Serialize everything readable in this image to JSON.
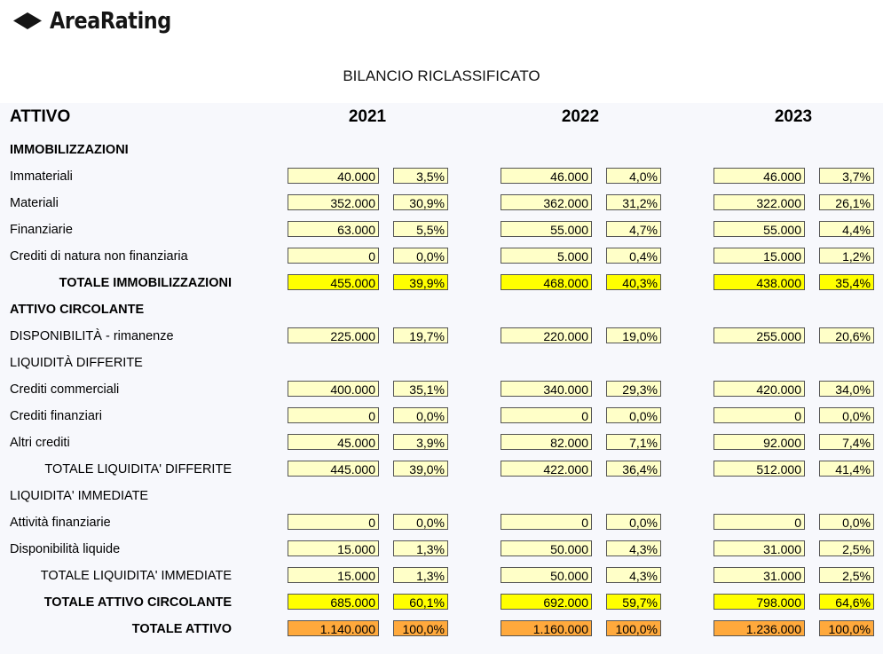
{
  "brand": {
    "name": "AreaRating"
  },
  "page_title": "BILANCIO RICLASSIFICATO",
  "header": {
    "section": "ATTIVO",
    "years": [
      "2021",
      "2022",
      "2023"
    ]
  },
  "rows": [
    {
      "label": "IMMOBILIZZAZIONI",
      "type": "section"
    },
    {
      "label": "Immateriali",
      "type": "data",
      "values": [
        [
          "40.000",
          "3,5%"
        ],
        [
          "46.000",
          "4,0%"
        ],
        [
          "46.000",
          "3,7%"
        ]
      ]
    },
    {
      "label": "Materiali",
      "type": "data",
      "values": [
        [
          "352.000",
          "30,9%"
        ],
        [
          "362.000",
          "31,2%"
        ],
        [
          "322.000",
          "26,1%"
        ]
      ]
    },
    {
      "label": "Finanziarie",
      "type": "data",
      "values": [
        [
          "63.000",
          "5,5%"
        ],
        [
          "55.000",
          "4,7%"
        ],
        [
          "55.000",
          "4,4%"
        ]
      ]
    },
    {
      "label": "Crediti di natura non finanziaria",
      "type": "data",
      "values": [
        [
          "0",
          "0,0%"
        ],
        [
          "5.000",
          "0,4%"
        ],
        [
          "15.000",
          "1,2%"
        ]
      ]
    },
    {
      "label": "TOTALE IMMOBILIZZAZIONI",
      "type": "total",
      "values": [
        [
          "455.000",
          "39,9%"
        ],
        [
          "468.000",
          "40,3%"
        ],
        [
          "438.000",
          "35,4%"
        ]
      ]
    },
    {
      "label": "ATTIVO CIRCOLANTE",
      "type": "section"
    },
    {
      "label": "DISPONIBILITÀ - rimanenze",
      "type": "data",
      "values": [
        [
          "225.000",
          "19,7%"
        ],
        [
          "220.000",
          "19,0%"
        ],
        [
          "255.000",
          "20,6%"
        ]
      ]
    },
    {
      "label": "LIQUIDITÀ DIFFERITE",
      "type": "subsection"
    },
    {
      "label": "Crediti commerciali",
      "type": "data",
      "values": [
        [
          "400.000",
          "35,1%"
        ],
        [
          "340.000",
          "29,3%"
        ],
        [
          "420.000",
          "34,0%"
        ]
      ]
    },
    {
      "label": "Crediti finanziari",
      "type": "data",
      "values": [
        [
          "0",
          "0,0%"
        ],
        [
          "0",
          "0,0%"
        ],
        [
          "0",
          "0,0%"
        ]
      ]
    },
    {
      "label": "Altri crediti",
      "type": "data",
      "values": [
        [
          "45.000",
          "3,9%"
        ],
        [
          "82.000",
          "7,1%"
        ],
        [
          "92.000",
          "7,4%"
        ]
      ]
    },
    {
      "label": "TOTALE LIQUIDITA' DIFFERITE",
      "type": "subtotal",
      "values": [
        [
          "445.000",
          "39,0%"
        ],
        [
          "422.000",
          "36,4%"
        ],
        [
          "512.000",
          "41,4%"
        ]
      ]
    },
    {
      "label": "LIQUIDITA' IMMEDIATE",
      "type": "subsection"
    },
    {
      "label": "Attività finanziarie",
      "type": "data",
      "values": [
        [
          "0",
          "0,0%"
        ],
        [
          "0",
          "0,0%"
        ],
        [
          "0",
          "0,0%"
        ]
      ]
    },
    {
      "label": "Disponibilità liquide",
      "type": "data",
      "values": [
        [
          "15.000",
          "1,3%"
        ],
        [
          "50.000",
          "4,3%"
        ],
        [
          "31.000",
          "2,5%"
        ]
      ]
    },
    {
      "label": "TOTALE LIQUIDITA' IMMEDIATE",
      "type": "subtotal",
      "values": [
        [
          "15.000",
          "1,3%"
        ],
        [
          "50.000",
          "4,3%"
        ],
        [
          "31.000",
          "2,5%"
        ]
      ]
    },
    {
      "label": "TOTALE ATTIVO CIRCOLANTE",
      "type": "total",
      "values": [
        [
          "685.000",
          "60,1%"
        ],
        [
          "692.000",
          "59,7%"
        ],
        [
          "798.000",
          "64,6%"
        ]
      ]
    },
    {
      "label": "TOTALE ATTIVO",
      "type": "grandtotal",
      "values": [
        [
          "1.140.000",
          "100,0%"
        ],
        [
          "1.160.000",
          "100,0%"
        ],
        [
          "1.236.000",
          "100,0%"
        ]
      ]
    }
  ],
  "colors": {
    "input_cell": "#ffffc8",
    "total_cell": "#ffff00",
    "grand_total_cell": "#ffa93c",
    "panel_bg": "#f7f8fc"
  }
}
